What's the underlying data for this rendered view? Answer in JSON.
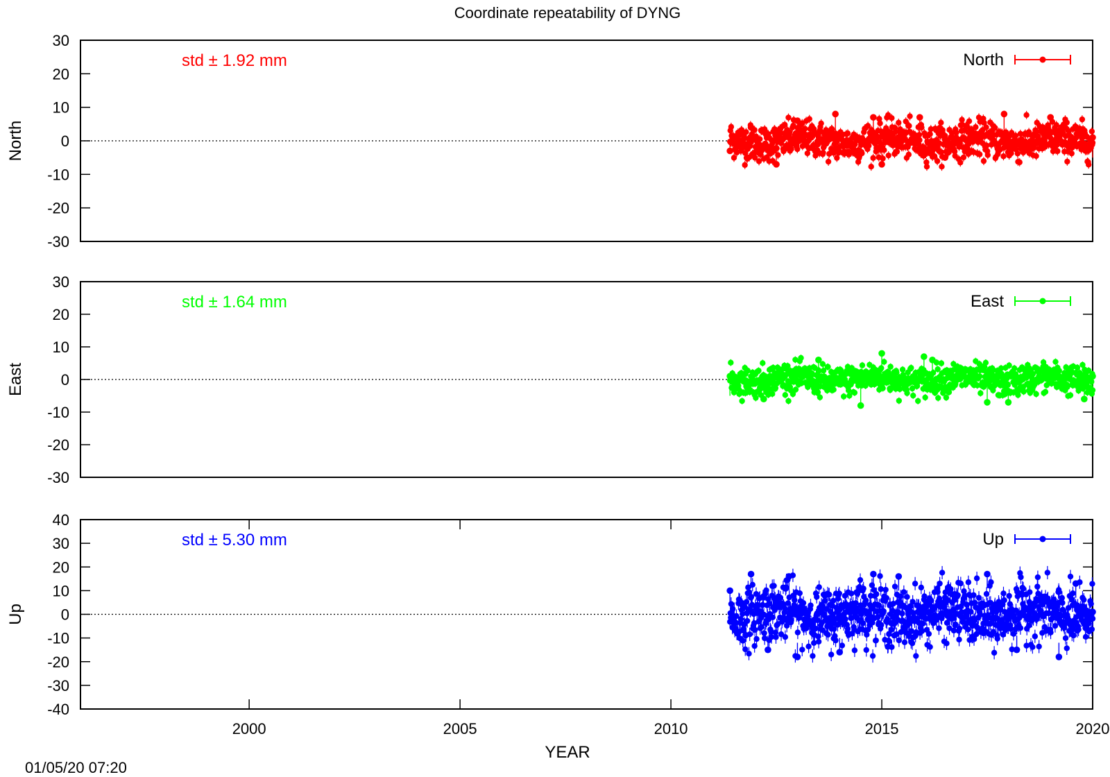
{
  "title": "Coordinate repeatability of DYNG",
  "timestamp": "01/05/20 07:20",
  "colors": {
    "North": "#ff0000",
    "East": "#00ff00",
    "Up": "#0000ff",
    "zero_line": "#000000"
  },
  "chart_data": [
    {
      "type": "scatter",
      "panel": "North",
      "ylabel": "North",
      "legend": "North",
      "legend_position": "top-right",
      "std_label": "std ± 1.92 mm",
      "xlim": [
        1996,
        2020
      ],
      "ylim": [
        -30,
        30
      ],
      "yticks": [
        30,
        20,
        10,
        0,
        -10,
        -20,
        -30
      ],
      "ytick_labels": [
        "30",
        "20",
        "10",
        "0",
        "-10",
        "-20",
        "-30"
      ],
      "data_range": [
        2011.4,
        2020.0
      ],
      "spread": 3.5,
      "notable_points": [
        {
          "x": 2011.4,
          "y": -3
        },
        {
          "x": 2011.9,
          "y": 4
        },
        {
          "x": 2012.5,
          "y": -7
        },
        {
          "x": 2013.0,
          "y": 6
        },
        {
          "x": 2013.9,
          "y": 8
        },
        {
          "x": 2014.8,
          "y": 7
        },
        {
          "x": 2015.0,
          "y": -7
        },
        {
          "x": 2015.9,
          "y": 7
        },
        {
          "x": 2016.5,
          "y": -5
        },
        {
          "x": 2017.9,
          "y": 8
        },
        {
          "x": 2019.0,
          "y": 7
        },
        {
          "x": 2020.0,
          "y": 1
        }
      ]
    },
    {
      "type": "scatter",
      "panel": "East",
      "ylabel": "East",
      "legend": "East",
      "legend_position": "top-right",
      "std_label": "std ± 1.64 mm",
      "xlim": [
        1996,
        2020
      ],
      "ylim": [
        -30,
        30
      ],
      "yticks": [
        30,
        20,
        10,
        0,
        -10,
        -20,
        -30
      ],
      "ytick_labels": [
        "30",
        "20",
        "10",
        "0",
        "-10",
        "-20",
        "-30"
      ],
      "data_range": [
        2011.4,
        2020.0
      ],
      "spread": 3.0,
      "notable_points": [
        {
          "x": 2011.4,
          "y": 1
        },
        {
          "x": 2012.2,
          "y": -6
        },
        {
          "x": 2013.5,
          "y": 6
        },
        {
          "x": 2014.5,
          "y": -8
        },
        {
          "x": 2015.0,
          "y": 8
        },
        {
          "x": 2016.0,
          "y": 7
        },
        {
          "x": 2016.2,
          "y": 6
        },
        {
          "x": 2017.5,
          "y": -7
        },
        {
          "x": 2018.0,
          "y": -7
        },
        {
          "x": 2019.8,
          "y": -6
        },
        {
          "x": 2020.0,
          "y": 1
        }
      ]
    },
    {
      "type": "scatter",
      "panel": "Up",
      "ylabel": "Up",
      "legend": "Up",
      "legend_position": "top-right",
      "std_label": "std ± 5.30 mm",
      "xlabel": "YEAR",
      "xlim": [
        1996,
        2020
      ],
      "ylim": [
        -40,
        40
      ],
      "yticks": [
        40,
        30,
        20,
        10,
        0,
        -10,
        -20,
        -30,
        -40
      ],
      "ytick_labels": [
        "40",
        "30",
        "20",
        "10",
        "0",
        "-10",
        "-20",
        "-30",
        "-40"
      ],
      "xticks": [
        2000,
        2005,
        2010,
        2015,
        2020
      ],
      "xtick_labels": [
        "2000",
        "2005",
        "2010",
        "2015",
        "2020"
      ],
      "data_range": [
        2011.4,
        2020.0
      ],
      "spread": 8.0,
      "notable_points": [
        {
          "x": 2011.4,
          "y": 10
        },
        {
          "x": 2011.5,
          "y": -1
        },
        {
          "x": 2011.9,
          "y": 17
        },
        {
          "x": 2012.3,
          "y": -15
        },
        {
          "x": 2012.8,
          "y": 16
        },
        {
          "x": 2013.0,
          "y": -18
        },
        {
          "x": 2014.0,
          "y": -16
        },
        {
          "x": 2014.8,
          "y": 17
        },
        {
          "x": 2015.4,
          "y": 16
        },
        {
          "x": 2017.5,
          "y": 17
        },
        {
          "x": 2018.2,
          "y": -15
        },
        {
          "x": 2019.2,
          "y": -18
        },
        {
          "x": 2019.6,
          "y": 13
        },
        {
          "x": 2020.0,
          "y": 1
        }
      ]
    }
  ]
}
